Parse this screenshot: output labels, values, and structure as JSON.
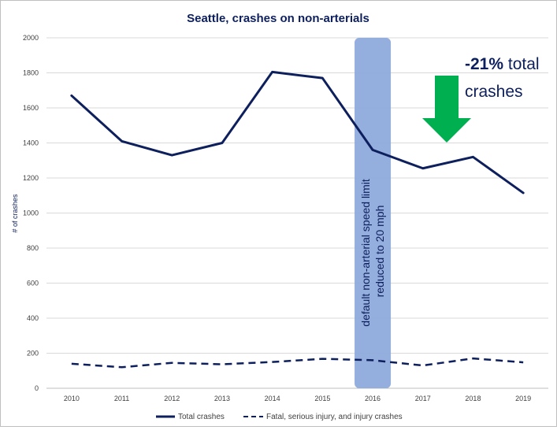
{
  "chart_data": {
    "type": "line",
    "title": "Seattle, crashes on non-arterials",
    "xlabel": "",
    "ylabel": "# of crashes",
    "categories": [
      "2010",
      "2011",
      "2012",
      "2013",
      "2014",
      "2015",
      "2016",
      "2017",
      "2018",
      "2019"
    ],
    "ylim": [
      0,
      2000
    ],
    "yticks": [
      0,
      200,
      400,
      600,
      800,
      1000,
      1200,
      1400,
      1600,
      1800,
      2000
    ],
    "grid": true,
    "legend_position": "bottom",
    "series": [
      {
        "name": "Total crashes",
        "values": [
          1670,
          1410,
          1330,
          1400,
          1805,
          1770,
          1360,
          1255,
          1320,
          1115
        ],
        "color": "#0d1f5c",
        "style": "solid"
      },
      {
        "name": "Fatal, serious injury, and injury crashes",
        "values": [
          140,
          120,
          145,
          137,
          150,
          168,
          160,
          130,
          170,
          148
        ],
        "color": "#0d1f5c",
        "style": "dashed"
      }
    ],
    "annotations": {
      "band_category": "2016",
      "band_color": "#8eaadc",
      "band_text_line1": "default non-arterial speed limit",
      "band_text_line2": "reduced to 20 mph",
      "change_bold": "-21%",
      "change_rest": " total",
      "change_line2": "crashes",
      "arrow_color": "#00b050"
    }
  }
}
